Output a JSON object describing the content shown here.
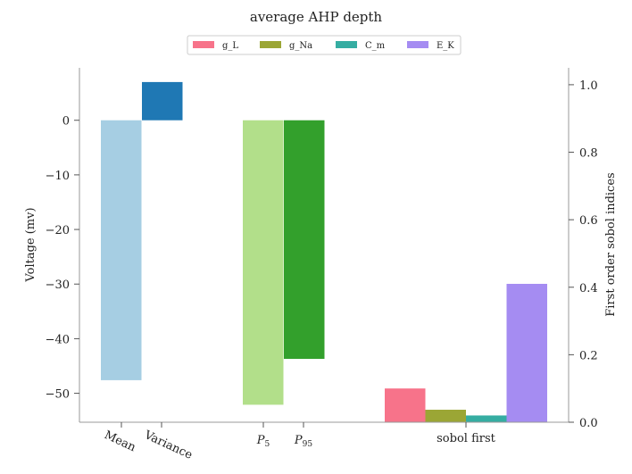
{
  "chart_data": {
    "type": "bar",
    "title": "average AHP depth",
    "legend": {
      "placement": "top-center",
      "entries": [
        {
          "label": "g_L",
          "color": "#f7738a"
        },
        {
          "label": "g_Na",
          "color": "#9ba635"
        },
        {
          "label": "C_m",
          "color": "#35ada2"
        },
        {
          "label": "E_K",
          "color": "#a58cf2"
        }
      ]
    },
    "left_axis": {
      "label": "Voltage (mv)",
      "ylim": [
        -55.3,
        9.6
      ],
      "ticks": [
        0,
        -10,
        -20,
        -30,
        -40,
        -50
      ],
      "tick_labels": [
        "0",
        "−10",
        "−20",
        "−30",
        "−40",
        "−50"
      ]
    },
    "right_axis": {
      "label": "First order sobol indices",
      "ylim": [
        0,
        1.05
      ],
      "ticks": [
        0,
        0.2,
        0.4,
        0.6,
        0.8,
        1.0
      ],
      "tick_labels": [
        "0.0",
        "0.2",
        "0.4",
        "0.6",
        "0.8",
        "1.0"
      ]
    },
    "groups": [
      {
        "label": "Mean",
        "axis": "left",
        "value": -47.6,
        "color": "#a6cee3"
      },
      {
        "label": "Variance",
        "axis": "left",
        "value": 7.0,
        "color": "#1f78b4"
      },
      {
        "label": "P",
        "sub": "5",
        "axis": "left",
        "value": -52.1,
        "color": "#b2df8a"
      },
      {
        "label": "P",
        "sub": "95",
        "axis": "left",
        "value": -43.7,
        "color": "#33a02c"
      }
    ],
    "sobol": {
      "label": "sobol first",
      "axis": "right",
      "values": [
        {
          "name": "g_L",
          "value": 0.1,
          "color": "#f7738a"
        },
        {
          "name": "g_Na",
          "value": 0.037,
          "color": "#9ba635"
        },
        {
          "name": "C_m",
          "value": 0.02,
          "color": "#35ada2"
        },
        {
          "name": "E_K",
          "value": 0.41,
          "color": "#a58cf2"
        }
      ]
    }
  }
}
